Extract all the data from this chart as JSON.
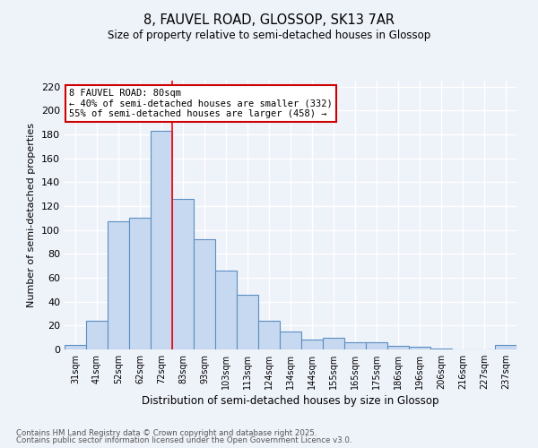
{
  "title1": "8, FAUVEL ROAD, GLOSSOP, SK13 7AR",
  "title2": "Size of property relative to semi-detached houses in Glossop",
  "xlabel": "Distribution of semi-detached houses by size in Glossop",
  "ylabel": "Number of semi-detached properties",
  "footnote1": "Contains HM Land Registry data © Crown copyright and database right 2025.",
  "footnote2": "Contains public sector information licensed under the Open Government Licence v3.0.",
  "categories": [
    "31sqm",
    "41sqm",
    "52sqm",
    "62sqm",
    "72sqm",
    "83sqm",
    "93sqm",
    "103sqm",
    "113sqm",
    "124sqm",
    "134sqm",
    "144sqm",
    "155sqm",
    "165sqm",
    "175sqm",
    "186sqm",
    "196sqm",
    "206sqm",
    "216sqm",
    "227sqm",
    "237sqm"
  ],
  "values": [
    4,
    24,
    107,
    110,
    183,
    126,
    92,
    66,
    46,
    24,
    15,
    8,
    10,
    6,
    6,
    3,
    2,
    1,
    0,
    0,
    4
  ],
  "bar_color": "#c7d9f0",
  "bar_edge_color": "#5a8fc3",
  "red_line_x": 4.5,
  "annotation_title": "8 FAUVEL ROAD: 80sqm",
  "annotation_line1": "← 40% of semi-detached houses are smaller (332)",
  "annotation_line2": "55% of semi-detached houses are larger (458) →",
  "ylim": [
    0,
    225
  ],
  "yticks": [
    0,
    20,
    40,
    60,
    80,
    100,
    120,
    140,
    160,
    180,
    200,
    220
  ],
  "bg_color": "#eef2f9",
  "grid_color": "#ffffff",
  "annotation_box_color": "#ffffff",
  "annotation_box_edge": "#cc0000"
}
